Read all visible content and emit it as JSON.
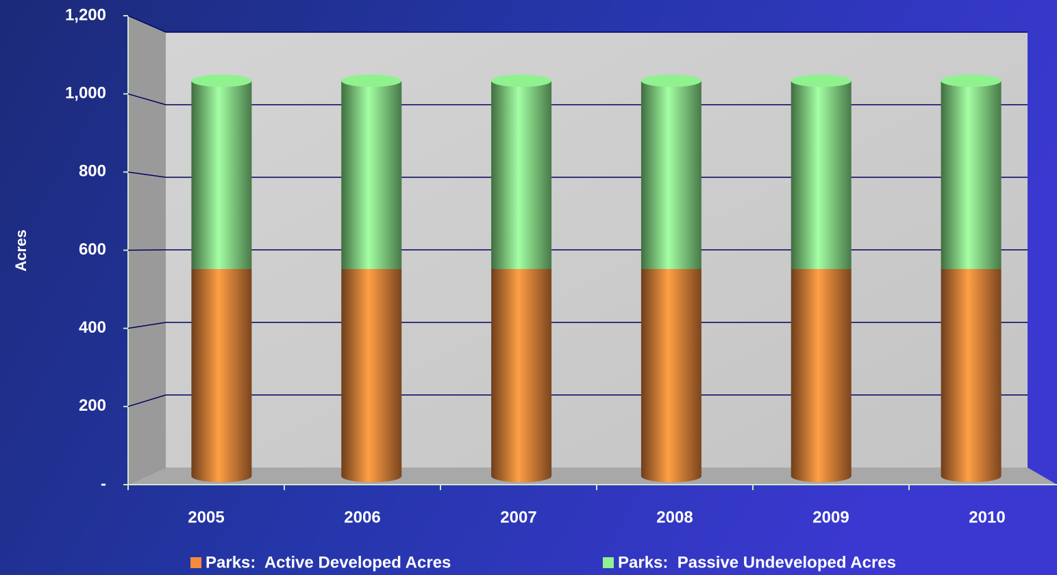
{
  "chart_data": {
    "type": "stacked_bar_3d",
    "y_label": "Acres",
    "categories": [
      "2005",
      "2006",
      "2007",
      "2008",
      "2009",
      "2010"
    ],
    "series": [
      {
        "name": "Parks:  Active Developed Acres",
        "color": "#f58a3c",
        "values": [
          550,
          550,
          550,
          550,
          550,
          550
        ]
      },
      {
        "name": "Parks:  Passive Undeveloped Acres",
        "color": "#8ff28f",
        "values": [
          500,
          500,
          500,
          500,
          500,
          500
        ]
      }
    ],
    "ylim": [
      0,
      1200
    ],
    "yticks": [
      {
        "value": 0,
        "label": "-"
      },
      200,
      400,
      600,
      800,
      {
        "value": 1000,
        "label": "1,000"
      },
      {
        "value": 1200,
        "label": "1,200"
      }
    ],
    "grid": true
  }
}
